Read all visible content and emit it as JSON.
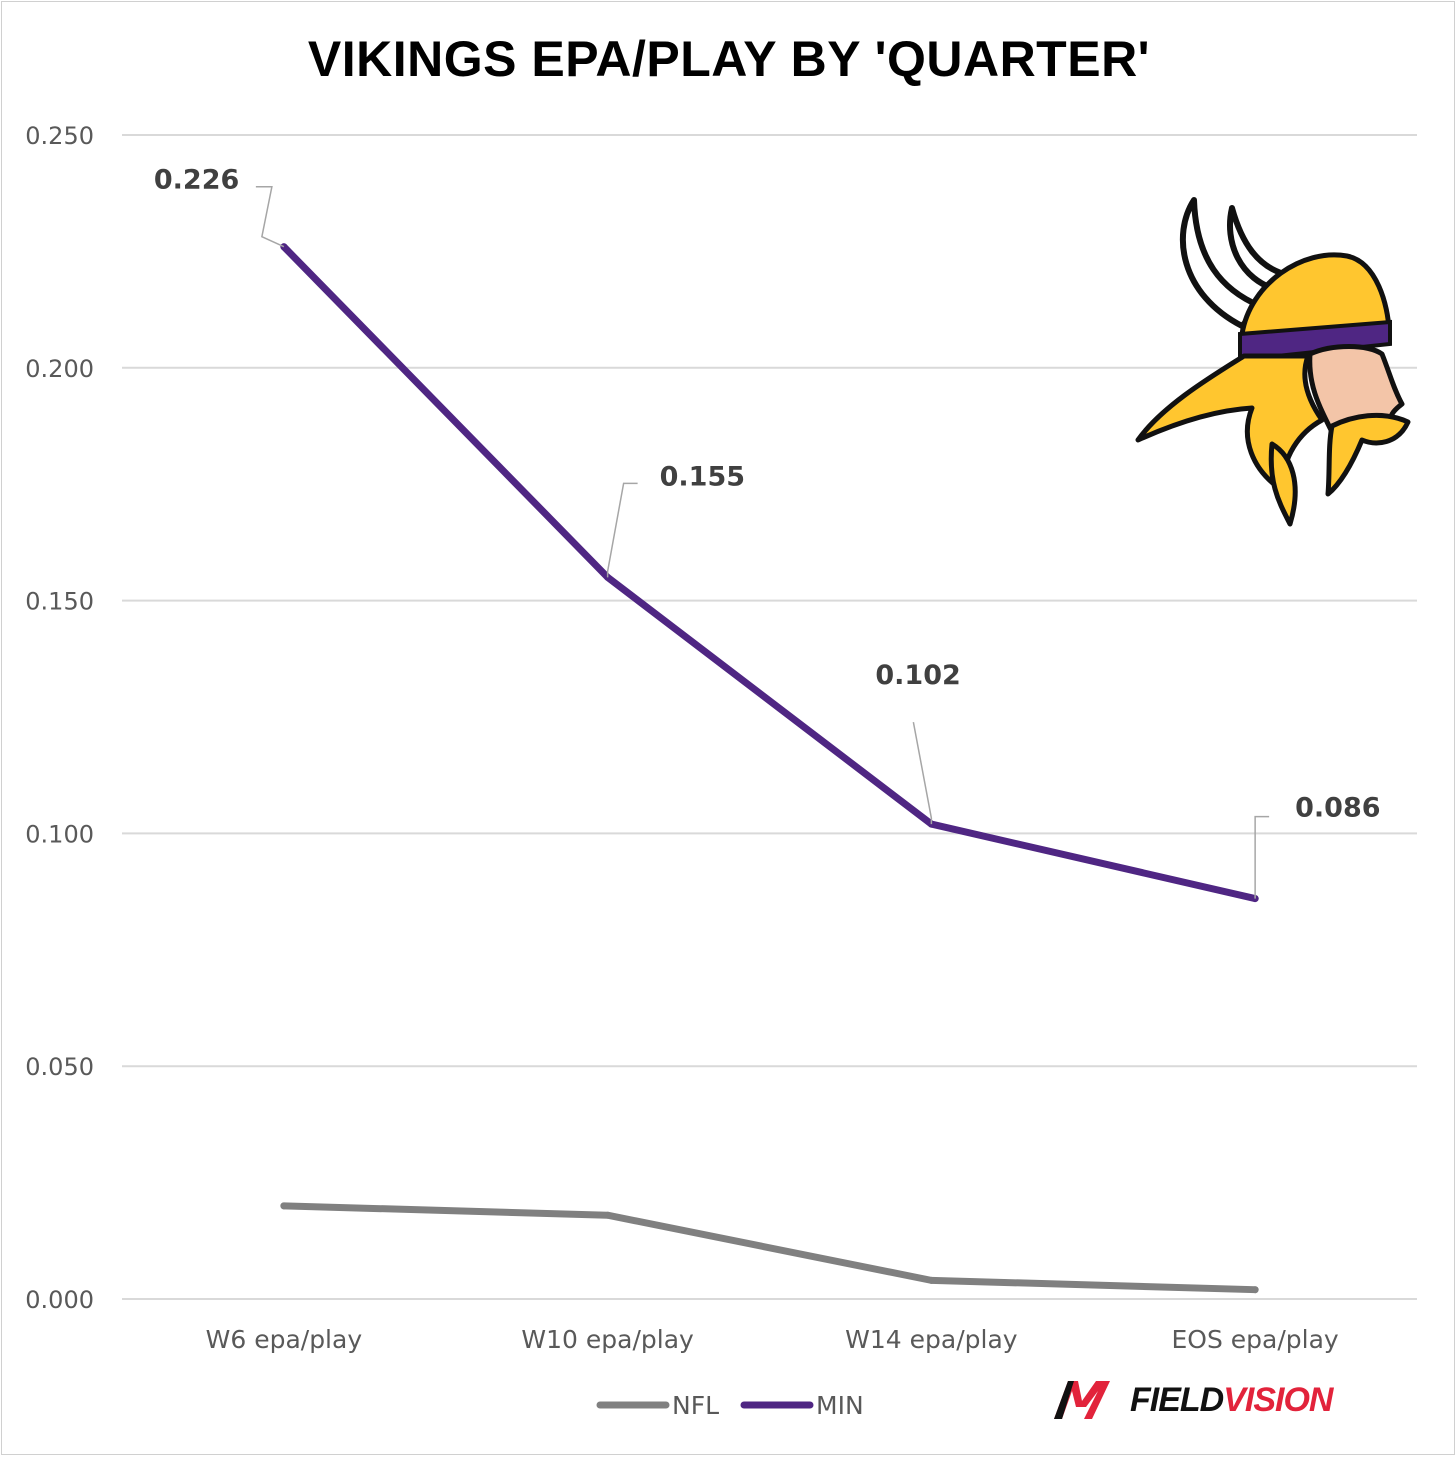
{
  "chart_data": {
    "type": "line",
    "title": "VIKINGS EPA/PLAY BY 'QUARTER'",
    "categories": [
      "W6 epa/play",
      "W10 epa/play",
      "W14 epa/play",
      "EOS epa/play"
    ],
    "series": [
      {
        "name": "NFL",
        "values": [
          0.02,
          0.018,
          0.004,
          0.002
        ],
        "color": "#808080",
        "labels": false
      },
      {
        "name": "MIN",
        "values": [
          0.226,
          0.155,
          0.102,
          0.086
        ],
        "color": "#4f2683",
        "labels": true
      }
    ],
    "data_labels": [
      "0.226",
      "0.155",
      "0.102",
      "0.086"
    ],
    "y_ticks": [
      "0.000",
      "0.050",
      "0.100",
      "0.150",
      "0.200",
      "0.250"
    ],
    "ylim": [
      0,
      0.25
    ],
    "grid": true,
    "legend": "bottom"
  },
  "branding": {
    "wordmark_part1": "FIELD",
    "wordmark_part2": "VISION",
    "team_logo": "vikings-head-logo",
    "colors": {
      "purple": "#4f2683",
      "gold": "#ffc62f",
      "red": "#e2233b"
    }
  }
}
